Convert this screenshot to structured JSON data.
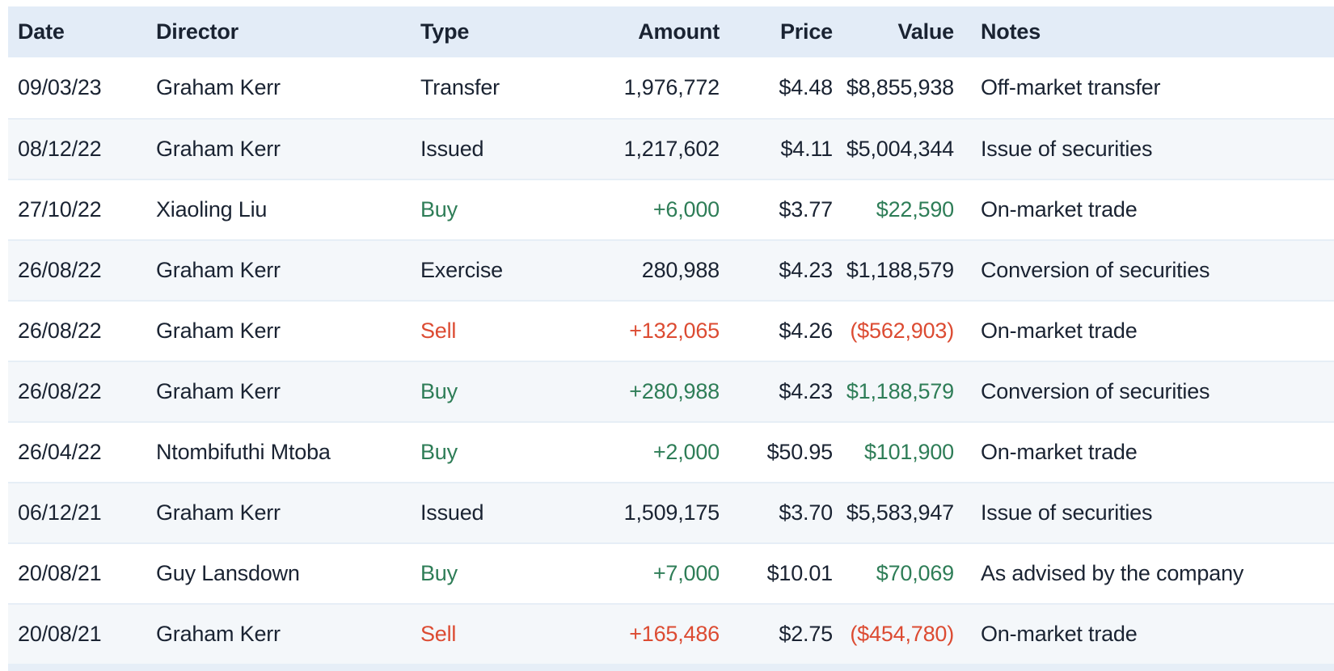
{
  "table": {
    "columns": [
      {
        "key": "date",
        "label": "Date",
        "align": "left"
      },
      {
        "key": "director",
        "label": "Director",
        "align": "left"
      },
      {
        "key": "type",
        "label": "Type",
        "align": "left"
      },
      {
        "key": "amount",
        "label": "Amount",
        "align": "right"
      },
      {
        "key": "price",
        "label": "Price",
        "align": "right"
      },
      {
        "key": "value",
        "label": "Value",
        "align": "right"
      },
      {
        "key": "notes",
        "label": "Notes",
        "align": "left"
      }
    ],
    "rows": [
      {
        "date": "09/03/23",
        "director": "Graham Kerr",
        "type": "Transfer",
        "amount": "1,976,772",
        "price": "$4.48",
        "value": "$8,855,938",
        "notes": "Off-market transfer",
        "sentiment": "neutral"
      },
      {
        "date": "08/12/22",
        "director": "Graham Kerr",
        "type": "Issued",
        "amount": "1,217,602",
        "price": "$4.11",
        "value": "$5,004,344",
        "notes": "Issue of securities",
        "sentiment": "neutral"
      },
      {
        "date": "27/10/22",
        "director": "Xiaoling Liu",
        "type": "Buy",
        "amount": "+6,000",
        "price": "$3.77",
        "value": "$22,590",
        "notes": "On-market trade",
        "sentiment": "buy"
      },
      {
        "date": "26/08/22",
        "director": "Graham Kerr",
        "type": "Exercise",
        "amount": "280,988",
        "price": "$4.23",
        "value": "$1,188,579",
        "notes": "Conversion of securities",
        "sentiment": "neutral"
      },
      {
        "date": "26/08/22",
        "director": "Graham Kerr",
        "type": "Sell",
        "amount": "+132,065",
        "price": "$4.26",
        "value": "($562,903)",
        "notes": "On-market trade",
        "sentiment": "sell"
      },
      {
        "date": "26/08/22",
        "director": "Graham Kerr",
        "type": "Buy",
        "amount": "+280,988",
        "price": "$4.23",
        "value": "$1,188,579",
        "notes": "Conversion of securities",
        "sentiment": "buy"
      },
      {
        "date": "26/04/22",
        "director": "Ntombifuthi Mtoba",
        "type": "Buy",
        "amount": "+2,000",
        "price": "$50.95",
        "value": "$101,900",
        "notes": "On-market trade",
        "sentiment": "buy"
      },
      {
        "date": "06/12/21",
        "director": "Graham Kerr",
        "type": "Issued",
        "amount": "1,509,175",
        "price": "$3.70",
        "value": "$5,583,947",
        "notes": "Issue of securities",
        "sentiment": "neutral"
      },
      {
        "date": "20/08/21",
        "director": "Guy Lansdown",
        "type": "Buy",
        "amount": "+7,000",
        "price": "$10.01",
        "value": "$70,069",
        "notes": "As advised by the company",
        "sentiment": "buy"
      },
      {
        "date": "20/08/21",
        "director": "Graham Kerr",
        "type": "Sell",
        "amount": "+165,486",
        "price": "$2.75",
        "value": "($454,780)",
        "notes": "On-market trade",
        "sentiment": "sell"
      }
    ],
    "sentiment_columns": [
      "type",
      "amount",
      "value"
    ]
  },
  "colors": {
    "header_bg": "#e3ecf7",
    "stripe_bg": "#f4f7fa",
    "text": "#1a2332",
    "buy_green": "#2e7d57",
    "sell_red": "#dc4b32",
    "row_border": "#e6eef6",
    "bottom_strip": "#e6eef7"
  }
}
